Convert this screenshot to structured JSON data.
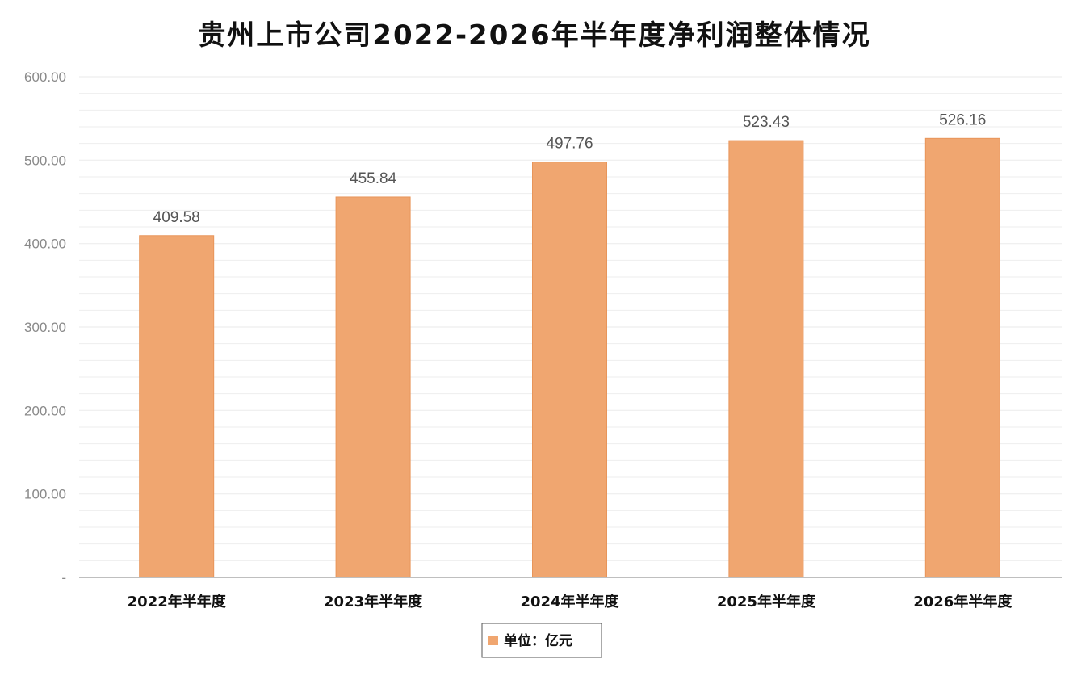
{
  "chart_data": {
    "type": "bar",
    "title": "贵州上市公司2022-2026年半年度净利润整体情况",
    "categories": [
      "2022年半年度",
      "2023年半年度",
      "2024年半年度",
      "2025年半年度",
      "2026年半年度"
    ],
    "series": [
      {
        "name": "单位：亿元",
        "values": [
          409.58,
          455.84,
          497.76,
          523.43,
          526.16
        ],
        "color": "#f0a670"
      }
    ],
    "data_labels": [
      "409.58",
      "455.84",
      "497.76",
      "523.43",
      "526.16"
    ],
    "yticks": [
      "-",
      "100.00",
      "200.00",
      "300.00",
      "400.00",
      "500.00",
      "600.00"
    ],
    "ylim": [
      0,
      600
    ],
    "xlabel": "",
    "ylabel": "",
    "grid": true,
    "legend_position": "bottom",
    "colors": {
      "bar": "#f0a670",
      "bar_edge": "#e8955a",
      "grid": "#eeeeee",
      "axis": "#bfbfbf"
    }
  }
}
